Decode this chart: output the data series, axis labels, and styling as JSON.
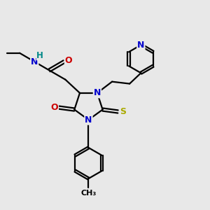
{
  "bg_color": "#e8e8e8",
  "atom_colors": {
    "C": "#000000",
    "N": "#0000cc",
    "O": "#cc0000",
    "S": "#aaaa00",
    "H": "#008888"
  },
  "bond_color": "#000000",
  "bond_width": 1.6,
  "figsize": [
    3.0,
    3.0
  ],
  "dpi": 100,
  "xlim": [
    0,
    10
  ],
  "ylim": [
    0,
    10
  ]
}
